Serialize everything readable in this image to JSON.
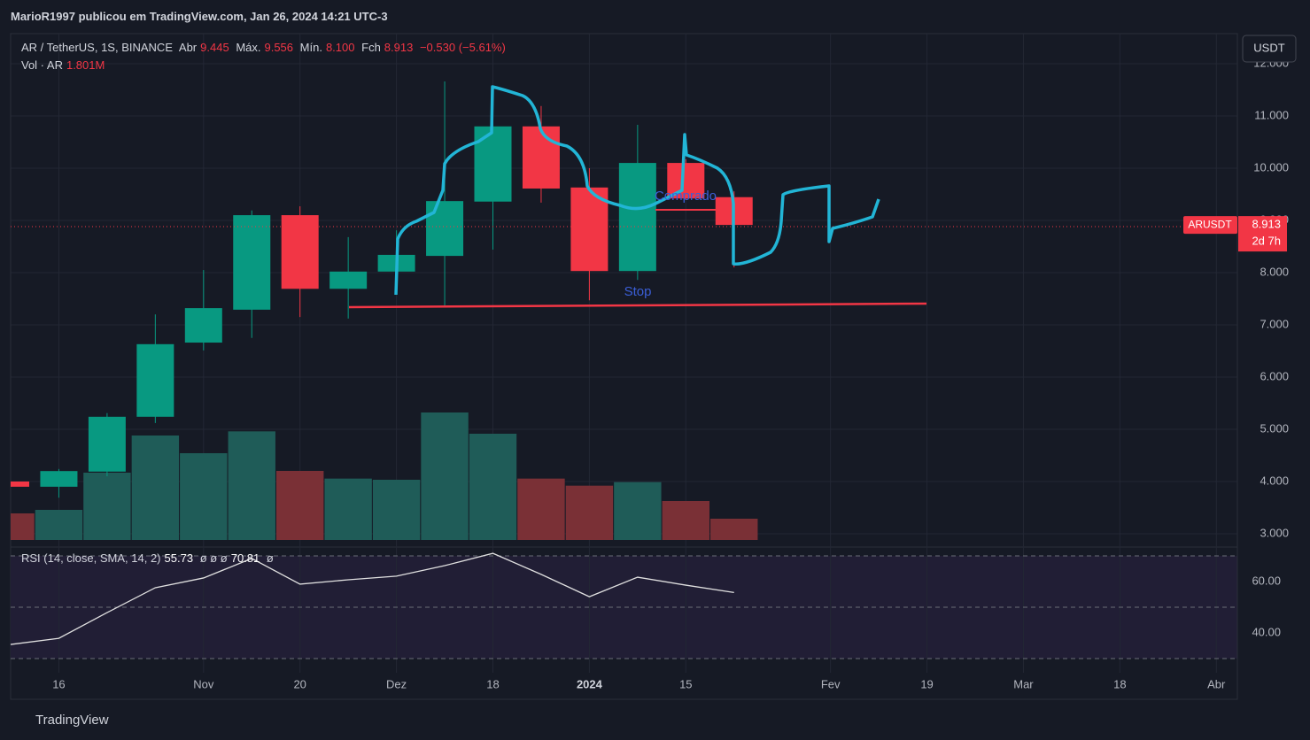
{
  "header": {
    "author_line": "MarioR1997 publicou em TradingView.com, Jan 26, 2024 14:21 UTC-3",
    "currency": "USDT",
    "footer": "TradingView"
  },
  "chart_data": [
    {
      "type": "candlestick",
      "symbol": "AR / TetherUS, 1S, BINANCE",
      "ohlc_header": [
        {
          "label": "Abr",
          "value": "9.445"
        },
        {
          "label": "Máx.",
          "value": "9.556"
        },
        {
          "label": "Mín.",
          "value": "8.100"
        },
        {
          "label": "Fch",
          "value": "8.913"
        }
      ],
      "change": "−0.530 (−5.61%)",
      "categories": [
        null,
        "16",
        null,
        null,
        "Nov",
        null,
        "20",
        null,
        "Dez",
        null,
        "18",
        null,
        "2024",
        null,
        "15",
        null,
        null,
        "Fev",
        null,
        "19",
        null,
        "Mar",
        null,
        "18",
        null,
        "Abr"
      ],
      "open": [
        4.0,
        3.9,
        4.19,
        5.24,
        6.66,
        7.29,
        9.1,
        7.69,
        8.02,
        8.32,
        9.36,
        10.8,
        9.63,
        8.03,
        10.1,
        9.445,
        null,
        null,
        null,
        null,
        null,
        null,
        null,
        null,
        null,
        null
      ],
      "high": [
        4.0,
        4.24,
        5.31,
        7.2,
        8.05,
        9.19,
        9.27,
        8.68,
        8.81,
        11.66,
        11.56,
        11.19,
        10.0,
        10.83,
        10.17,
        9.556,
        null,
        null,
        null,
        null,
        null,
        null,
        null,
        null,
        null,
        null
      ],
      "low": [
        3.9,
        3.69,
        4.1,
        5.12,
        6.51,
        6.75,
        7.15,
        7.12,
        7.97,
        7.37,
        8.44,
        9.34,
        7.47,
        7.86,
        9.39,
        8.1,
        null,
        null,
        null,
        null,
        null,
        null,
        null,
        null,
        null,
        null
      ],
      "close": [
        3.9,
        4.2,
        5.24,
        6.63,
        7.32,
        9.1,
        7.69,
        8.02,
        8.34,
        9.37,
        10.8,
        9.61,
        8.03,
        10.1,
        9.42,
        8.913,
        null,
        null,
        null,
        null,
        null,
        null,
        null,
        null,
        null,
        null
      ],
      "up_color": "#089981",
      "down_color": "#f23645",
      "ylim": [
        2.881,
        12.576
      ],
      "yticks": [
        {
          "value": 3,
          "label": "3.000"
        },
        {
          "value": 4,
          "label": "4.000"
        },
        {
          "value": 5,
          "label": "5.000"
        },
        {
          "value": 6,
          "label": "6.000"
        },
        {
          "value": 7,
          "label": "7.000"
        },
        {
          "value": 8,
          "label": "8.000"
        },
        {
          "value": 9,
          "label": "9.000"
        },
        {
          "value": 10,
          "label": "10.000"
        },
        {
          "value": 11,
          "label": "11.000"
        },
        {
          "value": 12,
          "label": "12.000"
        }
      ],
      "grid": true,
      "last_price": {
        "symbol": "ARUSDT",
        "value": 8.913,
        "countdown": "2d 7h"
      },
      "annotations": [
        "Comprado",
        "Stop"
      ]
    },
    {
      "type": "bar",
      "label": "Vol · AR",
      "last_label": "1.801M",
      "values": [
        2250000,
        2550000,
        5700000,
        8850000,
        7350000,
        9200000,
        5850000,
        5200000,
        5100000,
        10800000,
        9000000,
        5200000,
        4600000,
        4900000,
        3300000,
        1801000,
        null,
        null,
        null,
        null,
        null,
        null,
        null,
        null,
        null,
        null
      ],
      "colors": [
        "#7a3036",
        "#1f5c58",
        "#1f5c58",
        "#1f5c58",
        "#1f5c58",
        "#1f5c58",
        "#7a3036",
        "#1f5c58",
        "#1f5c58",
        "#1f5c58",
        "#1f5c58",
        "#7a3036",
        "#7a3036",
        "#1f5c58",
        "#7a3036",
        "#7a3036"
      ],
      "ylim": [
        0,
        42900000
      ]
    },
    {
      "type": "line",
      "label": "RSI (14, close, SMA, 14, 2)",
      "value_label": "55.73",
      "extras": "ø ø ø",
      "sma_label": "70.81",
      "sma_extra": "ø",
      "values": [
        35.5,
        37.9,
        47.9,
        57.6,
        61.4,
        69.0,
        59.0,
        60.7,
        62.1,
        66.2,
        71.0,
        62.8,
        54.1,
        61.7,
        58.6,
        55.73,
        null,
        null,
        null,
        null,
        null,
        null,
        null,
        null,
        null,
        null
      ],
      "color": "#e0e0e0",
      "ylim": [
        24.48,
        73.45
      ],
      "yticks": [
        {
          "value": 40,
          "label": "40.00"
        },
        {
          "value": 60,
          "label": "60.00"
        }
      ],
      "band_levels": [
        70,
        50,
        30
      ]
    }
  ]
}
